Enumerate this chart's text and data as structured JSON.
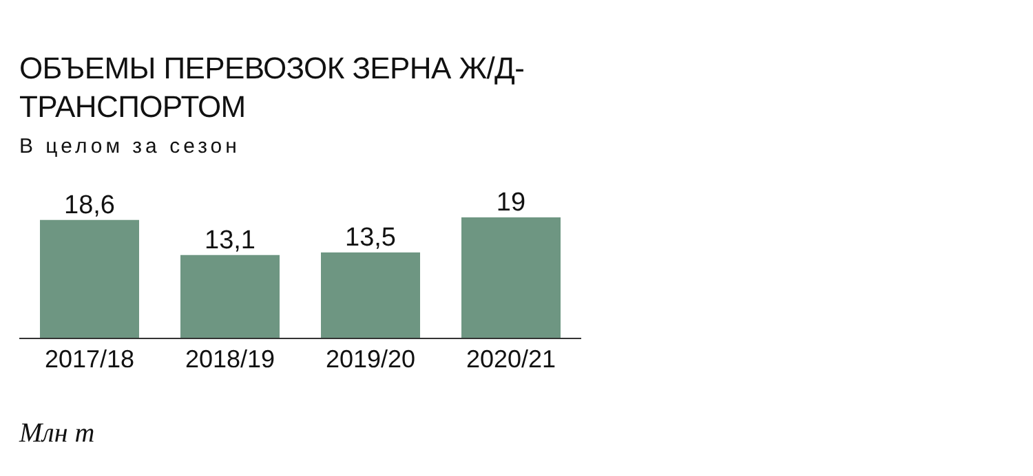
{
  "chart_data": {
    "type": "bar",
    "title": "ОБЪЕМЫ ПЕРЕВОЗОК ЗЕРНА Ж/Д-ТРАНСПОРТОМ",
    "subtitle": "В целом за сезон",
    "annotations": [
      "Млн т"
    ],
    "categories": [
      "2017/18",
      "2018/19",
      "2019/20",
      "2020/21"
    ],
    "values": [
      18.6,
      13.1,
      13.5,
      19
    ],
    "value_labels": [
      "18,6",
      "13,1",
      "13,5",
      "19"
    ],
    "color": "#6e9682"
  }
}
